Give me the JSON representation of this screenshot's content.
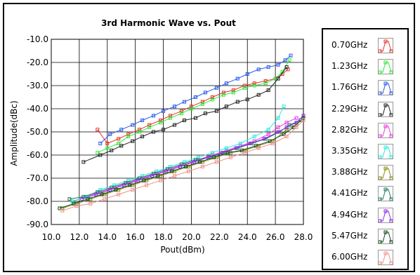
{
  "chart_data": {
    "type": "line",
    "title": "3rd Harmonic Wave vs. Pout",
    "xlabel": "Pout(dBm)",
    "ylabel": "Amplitude(dBc)",
    "xlim": [
      10.0,
      28.0
    ],
    "ylim": [
      -90.0,
      -10.0
    ],
    "x_ticks": [
      "10.0",
      "12.0",
      "14.0",
      "16.0",
      "18.0",
      "20.0",
      "22.0",
      "24.0",
      "26.0",
      "28.0"
    ],
    "y_ticks": [
      "-10.0",
      "-20.0",
      "-30.0",
      "-40.0",
      "-50.0",
      "-60.0",
      "-70.0",
      "-80.0",
      "-90.0"
    ],
    "grid": true,
    "legend_position": "right",
    "series": [
      {
        "name": "0.70GHz",
        "color": "#e8302a",
        "points": [
          [
            13.3,
            -49
          ],
          [
            14.0,
            -55
          ],
          [
            14.8,
            -53
          ],
          [
            15.5,
            -51
          ],
          [
            16.3,
            -49
          ],
          [
            17.0,
            -47
          ],
          [
            17.8,
            -45
          ],
          [
            18.5,
            -43
          ],
          [
            19.3,
            -41
          ],
          [
            20.0,
            -39
          ],
          [
            20.8,
            -37
          ],
          [
            21.5,
            -35
          ],
          [
            22.3,
            -33
          ],
          [
            23.0,
            -32
          ],
          [
            23.8,
            -30
          ],
          [
            24.5,
            -29
          ],
          [
            25.3,
            -28
          ],
          [
            26.0,
            -27
          ],
          [
            26.5,
            -25
          ],
          [
            26.9,
            -23
          ]
        ]
      },
      {
        "name": "1.23GHz",
        "color": "#2ee83a",
        "points": [
          [
            13.3,
            -59
          ],
          [
            14.0,
            -57
          ],
          [
            14.8,
            -55
          ],
          [
            15.5,
            -52
          ],
          [
            16.3,
            -50
          ],
          [
            17.0,
            -48
          ],
          [
            17.8,
            -46
          ],
          [
            18.5,
            -44
          ],
          [
            19.3,
            -42
          ],
          [
            20.0,
            -40
          ],
          [
            20.8,
            -38
          ],
          [
            21.5,
            -36
          ],
          [
            22.3,
            -34
          ],
          [
            23.0,
            -33
          ],
          [
            23.8,
            -31
          ],
          [
            24.5,
            -30
          ],
          [
            25.3,
            -29
          ],
          [
            26.0,
            -27
          ],
          [
            26.5,
            -24
          ],
          [
            27.0,
            -19
          ]
        ]
      },
      {
        "name": "1.76GHz",
        "color": "#2a5ae8",
        "points": [
          [
            13.5,
            -55
          ],
          [
            14.2,
            -51
          ],
          [
            15.0,
            -49
          ],
          [
            15.8,
            -47
          ],
          [
            16.5,
            -45
          ],
          [
            17.3,
            -43
          ],
          [
            18.0,
            -41
          ],
          [
            18.8,
            -39
          ],
          [
            19.5,
            -37
          ],
          [
            20.3,
            -35
          ],
          [
            21.0,
            -33
          ],
          [
            21.8,
            -31
          ],
          [
            22.5,
            -29
          ],
          [
            23.3,
            -27
          ],
          [
            24.0,
            -25
          ],
          [
            24.8,
            -23
          ],
          [
            25.5,
            -22
          ],
          [
            26.2,
            -21
          ],
          [
            26.7,
            -19
          ],
          [
            27.1,
            -17
          ]
        ]
      },
      {
        "name": "2.29GHz",
        "color": "#222222",
        "points": [
          [
            12.3,
            -63
          ],
          [
            13.5,
            -60
          ],
          [
            14.3,
            -58
          ],
          [
            15.0,
            -56
          ],
          [
            15.8,
            -54
          ],
          [
            16.5,
            -52
          ],
          [
            17.3,
            -50
          ],
          [
            18.0,
            -49
          ],
          [
            18.8,
            -47
          ],
          [
            19.5,
            -45
          ],
          [
            20.3,
            -44
          ],
          [
            21.0,
            -42
          ],
          [
            21.8,
            -41
          ],
          [
            22.5,
            -39
          ],
          [
            23.3,
            -37
          ],
          [
            24.0,
            -36
          ],
          [
            24.8,
            -34
          ],
          [
            25.5,
            -32
          ],
          [
            26.2,
            -27
          ],
          [
            26.8,
            -22
          ]
        ]
      },
      {
        "name": "2.82GHz",
        "color": "#e83ae0",
        "points": [
          [
            11.5,
            -80
          ],
          [
            12.5,
            -78
          ],
          [
            13.5,
            -76
          ],
          [
            14.5,
            -74
          ],
          [
            15.5,
            -72
          ],
          [
            16.5,
            -70
          ],
          [
            17.5,
            -68
          ],
          [
            18.5,
            -66
          ],
          [
            19.5,
            -64
          ],
          [
            20.5,
            -62
          ],
          [
            21.5,
            -60
          ],
          [
            22.5,
            -58
          ],
          [
            23.5,
            -56
          ],
          [
            24.5,
            -54
          ],
          [
            25.5,
            -51
          ],
          [
            26.2,
            -48
          ],
          [
            26.8,
            -46
          ],
          [
            27.5,
            -44
          ]
        ]
      },
      {
        "name": "3.35GHz",
        "color": "#2ae8e0",
        "points": [
          [
            11.5,
            -80
          ],
          [
            12.5,
            -78
          ],
          [
            13.5,
            -75
          ],
          [
            14.5,
            -73
          ],
          [
            15.5,
            -71
          ],
          [
            16.5,
            -69
          ],
          [
            17.5,
            -67
          ],
          [
            18.5,
            -65
          ],
          [
            19.5,
            -63
          ],
          [
            20.5,
            -61
          ],
          [
            21.5,
            -59
          ],
          [
            22.5,
            -57
          ],
          [
            23.5,
            -55
          ],
          [
            24.5,
            -52
          ],
          [
            25.5,
            -49
          ],
          [
            26.2,
            -44
          ],
          [
            26.6,
            -39
          ]
        ]
      },
      {
        "name": "3.88GHz",
        "color": "#8a8a10",
        "points": [
          [
            10.8,
            -83
          ],
          [
            11.8,
            -81
          ],
          [
            12.8,
            -79
          ],
          [
            13.8,
            -77
          ],
          [
            14.8,
            -75
          ],
          [
            15.8,
            -73
          ],
          [
            16.8,
            -71
          ],
          [
            17.8,
            -69
          ],
          [
            18.8,
            -67
          ],
          [
            19.8,
            -65
          ],
          [
            20.8,
            -63
          ],
          [
            21.8,
            -61
          ],
          [
            22.8,
            -59
          ],
          [
            23.8,
            -58
          ],
          [
            24.8,
            -56
          ],
          [
            25.8,
            -54
          ],
          [
            26.8,
            -49
          ],
          [
            27.5,
            -47
          ]
        ]
      },
      {
        "name": "4.41GHz",
        "color": "#1a7a5a",
        "points": [
          [
            11.3,
            -79
          ],
          [
            12.3,
            -78
          ],
          [
            13.3,
            -76
          ],
          [
            14.3,
            -74
          ],
          [
            15.3,
            -72
          ],
          [
            16.3,
            -70
          ],
          [
            17.3,
            -68
          ],
          [
            18.3,
            -66
          ],
          [
            19.3,
            -64
          ],
          [
            20.3,
            -62
          ],
          [
            21.3,
            -61
          ],
          [
            22.3,
            -59
          ],
          [
            23.3,
            -57
          ],
          [
            24.3,
            -55
          ],
          [
            25.3,
            -53
          ],
          [
            26.3,
            -50
          ],
          [
            27.0,
            -47
          ],
          [
            27.8,
            -45
          ]
        ]
      },
      {
        "name": "4.94GHz",
        "color": "#8a2ae8",
        "points": [
          [
            12.2,
            -79
          ],
          [
            13.2,
            -77
          ],
          [
            14.2,
            -75
          ],
          [
            15.2,
            -73
          ],
          [
            16.2,
            -71
          ],
          [
            17.2,
            -69
          ],
          [
            18.2,
            -67
          ],
          [
            19.2,
            -65
          ],
          [
            20.2,
            -63
          ],
          [
            21.2,
            -61
          ],
          [
            22.2,
            -59
          ],
          [
            23.2,
            -57
          ],
          [
            24.2,
            -55
          ],
          [
            25.2,
            -53
          ],
          [
            26.2,
            -50
          ],
          [
            26.8,
            -48
          ],
          [
            27.5,
            -46
          ],
          [
            28.0,
            -43
          ]
        ]
      },
      {
        "name": "5.47GHz",
        "color": "#0a4a1a",
        "points": [
          [
            10.6,
            -83
          ],
          [
            11.6,
            -81
          ],
          [
            12.6,
            -79
          ],
          [
            13.6,
            -77
          ],
          [
            14.6,
            -75
          ],
          [
            15.6,
            -73
          ],
          [
            16.6,
            -71
          ],
          [
            17.6,
            -69
          ],
          [
            18.6,
            -67
          ],
          [
            19.6,
            -65
          ],
          [
            20.6,
            -63
          ],
          [
            21.6,
            -61
          ],
          [
            22.6,
            -59
          ],
          [
            23.6,
            -58
          ],
          [
            24.6,
            -56
          ],
          [
            25.6,
            -54
          ],
          [
            26.6,
            -51
          ],
          [
            27.3,
            -48
          ],
          [
            28.0,
            -44
          ]
        ]
      },
      {
        "name": "6.00GHz",
        "color": "#f0908a",
        "points": [
          [
            10.8,
            -84
          ],
          [
            11.8,
            -82
          ],
          [
            12.8,
            -81
          ],
          [
            13.8,
            -79
          ],
          [
            14.8,
            -77
          ],
          [
            15.8,
            -75
          ],
          [
            16.8,
            -73
          ],
          [
            17.8,
            -71
          ],
          [
            18.8,
            -69
          ],
          [
            19.8,
            -67
          ],
          [
            20.8,
            -65
          ],
          [
            21.8,
            -63
          ],
          [
            22.8,
            -61
          ],
          [
            23.8,
            -59
          ],
          [
            24.8,
            -57
          ],
          [
            25.8,
            -55
          ],
          [
            26.8,
            -52
          ],
          [
            27.5,
            -48
          ],
          [
            28.0,
            -45
          ]
        ]
      }
    ]
  }
}
